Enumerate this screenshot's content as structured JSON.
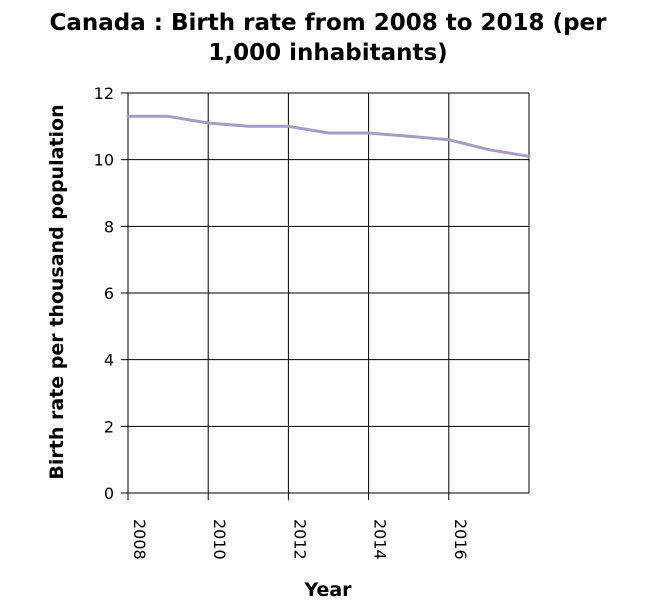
{
  "chart_data": {
    "type": "line",
    "title_lines": [
      "Canada : Birth rate from 2008 to 2018 (per",
      "1,000 inhabitants)"
    ],
    "xlabel": "Year",
    "ylabel": "Birth rate per thousand population",
    "xlim": [
      2008,
      2018
    ],
    "ylim": [
      0,
      12
    ],
    "xticks": [
      2008,
      2010,
      2012,
      2014,
      2016
    ],
    "yticks": [
      0,
      2,
      4,
      6,
      8,
      10,
      12
    ],
    "grid": true,
    "series": [
      {
        "color": "#a89bc2",
        "x": [
          2008,
          2009,
          2010,
          2011,
          2012,
          2013,
          2014,
          2015,
          2016,
          2017,
          2018
        ],
        "y": [
          11.3,
          11.3,
          11.1,
          11.0,
          11.0,
          10.8,
          10.8,
          10.7,
          10.6,
          10.3,
          10.1
        ]
      }
    ]
  }
}
